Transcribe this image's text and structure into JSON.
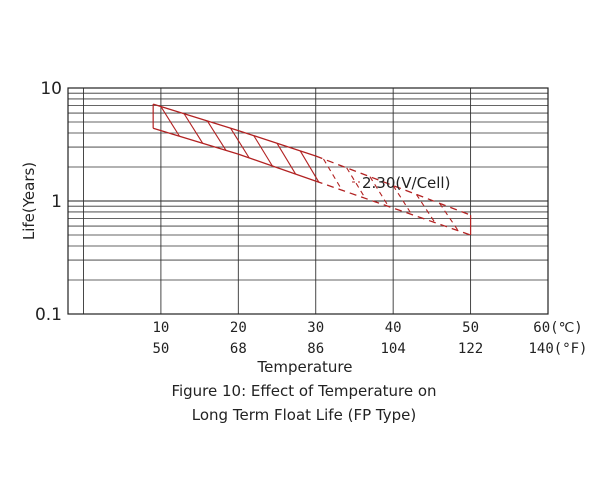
{
  "chart_data": {
    "type": "line",
    "x_axis": {
      "label": "Temperature",
      "celsius_ticks": [
        "10",
        "20",
        "30",
        "40",
        "50",
        "60(℃)"
      ],
      "fahrenheit_ticks": [
        "50",
        "68",
        "86",
        "104",
        "122",
        "140(°F)"
      ],
      "range_celsius": [
        -2,
        60
      ]
    },
    "y_axis": {
      "label": "Life(Years)",
      "scale": "log",
      "ticks": [
        "0.1",
        "1",
        "10"
      ],
      "range": [
        0.1,
        10
      ]
    },
    "grid": true,
    "band": {
      "annotation": "2.30(V/Cell)",
      "color": "#b22222",
      "upper": {
        "x": [
          9,
          20,
          30,
          50
        ],
        "y": [
          7.2,
          4.2,
          2.5,
          0.75
        ]
      },
      "lower": {
        "x": [
          9,
          20,
          30,
          50
        ],
        "y": [
          4.4,
          2.6,
          1.5,
          0.5
        ]
      }
    }
  },
  "caption": {
    "line1": "Figure 10: Effect of Temperature on",
    "line2": "Long Term Float Life (FP Type)"
  }
}
